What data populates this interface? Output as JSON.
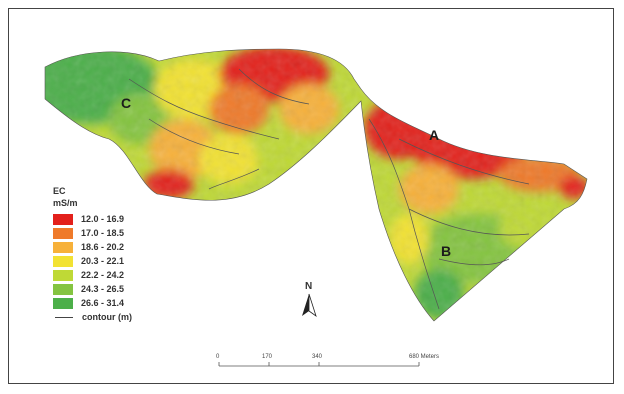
{
  "legend": {
    "title": "EC",
    "unit": "mS/m",
    "classes": [
      {
        "label": "12.0 - 16.9",
        "color": "#e3201b"
      },
      {
        "label": "17.0 - 18.5",
        "color": "#ef7a2a"
      },
      {
        "label": "18.6 - 20.2",
        "color": "#f7b13a"
      },
      {
        "label": "20.3 - 22.1",
        "color": "#f2e233"
      },
      {
        "label": "22.2 - 24.2",
        "color": "#bfd936"
      },
      {
        "label": "24.3 - 26.5",
        "color": "#84c441"
      },
      {
        "label": "26.6 - 31.4",
        "color": "#4caf49"
      }
    ],
    "contour_label": "contour (m)"
  },
  "sites": [
    "A",
    "B",
    "C"
  ],
  "north_label": "N",
  "scale_bar": {
    "ticks": [
      "0",
      "170",
      "340",
      "680 Meters"
    ]
  }
}
